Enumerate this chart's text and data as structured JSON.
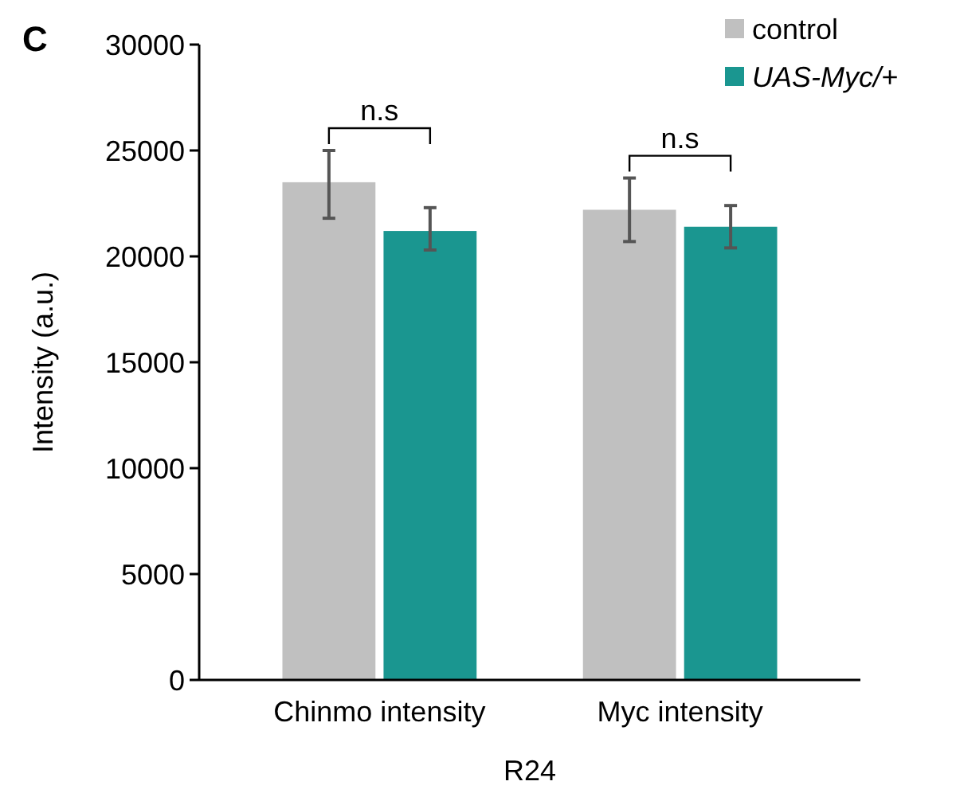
{
  "chart_data": {
    "type": "bar",
    "xlabel": "R24",
    "ylabel": "Intensity (a.u.)",
    "categories": [
      "Chinmo intensity",
      "Myc intensity"
    ],
    "series": [
      {
        "name": "control",
        "color": "#c0c0c0",
        "values": [
          23500,
          22200
        ],
        "errors": [
          [
            21800,
            25000
          ],
          [
            20700,
            23700
          ]
        ]
      },
      {
        "name": "UAS-Myc/+",
        "color": "#1a9690",
        "values": [
          21200,
          21400
        ],
        "errors": [
          [
            20300,
            22300
          ],
          [
            20400,
            22400
          ]
        ]
      }
    ],
    "ylim": [
      0,
      30000
    ],
    "yticks": [
      0,
      5000,
      10000,
      15000,
      20000,
      25000,
      30000
    ],
    "grid": false,
    "legend": "top right",
    "marker": "square",
    "annotations": [
      "C",
      "n.s",
      "n.s"
    ]
  }
}
